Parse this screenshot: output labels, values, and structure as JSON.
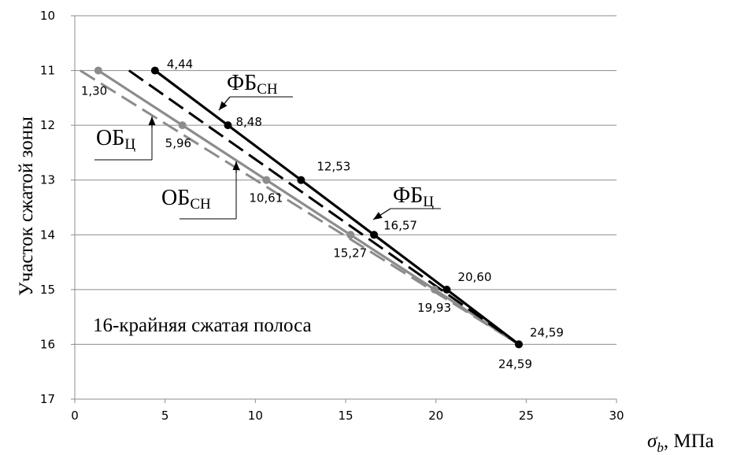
{
  "chart_data": {
    "type": "line",
    "xlabel_symbol": "σ",
    "xlabel_sub": "b",
    "xlabel_unit": ", МПа",
    "ylabel": "Участок сжатой зоны",
    "xlim": [
      0,
      30
    ],
    "ylim": [
      10,
      17
    ],
    "y_inverted": true,
    "x_ticks": [
      "0",
      "5",
      "10",
      "15",
      "20",
      "25",
      "30"
    ],
    "y_ticks": [
      "10",
      "11",
      "12",
      "13",
      "14",
      "15",
      "16",
      "17"
    ],
    "grid": "horizontal",
    "annotation": "16-крайняя сжатая полоса",
    "series": [
      {
        "name": "ФБ",
        "sub": "СН",
        "style": "solid",
        "color": "#000000",
        "points": [
          [
            4.44,
            11
          ],
          [
            8.48,
            12
          ],
          [
            12.53,
            13
          ],
          [
            16.57,
            14
          ],
          [
            20.6,
            15
          ],
          [
            24.59,
            16
          ]
        ],
        "labels": [
          "4,44",
          "8,48",
          "12,53",
          "16,57",
          "20,60",
          "24,59"
        ]
      },
      {
        "name": "ФБ",
        "sub": "Ц",
        "style": "dashed",
        "color": "#000000",
        "points": [
          [
            3.0,
            11
          ],
          [
            24.59,
            16
          ]
        ]
      },
      {
        "name": "ОБ",
        "sub": "СН",
        "style": "solid",
        "color": "#8c8c8c",
        "points": [
          [
            1.3,
            11
          ],
          [
            5.96,
            12
          ],
          [
            10.61,
            13
          ],
          [
            15.27,
            14
          ],
          [
            19.93,
            15
          ],
          [
            24.59,
            16
          ]
        ],
        "labels": [
          "1,30",
          "5,96",
          "10,61",
          "15,27",
          "19,93",
          "24,59"
        ]
      },
      {
        "name": "ОБ",
        "sub": "Ц",
        "style": "dashed",
        "color": "#8c8c8c",
        "points": [
          [
            0.3,
            11
          ],
          [
            24.59,
            16
          ]
        ]
      }
    ]
  }
}
